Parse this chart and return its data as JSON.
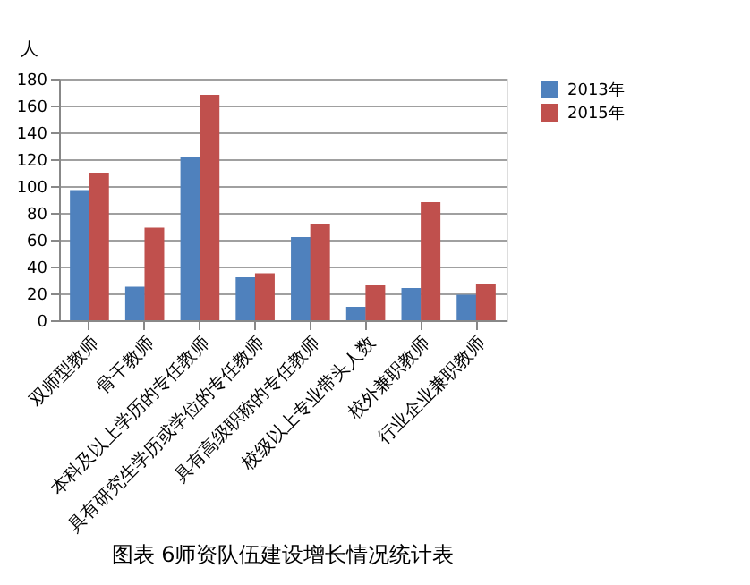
{
  "chart_data": {
    "type": "bar",
    "title": "图表 6师资队伍建设增长情况统计表",
    "ylabel": "人",
    "categories": [
      "双师型教师",
      "骨干教师",
      "本科及以上学历的专任教师",
      "具有研究生学历或学位的专任教师",
      "具有高级职称的专任教师",
      "校级以上专业带头人数",
      "校外兼职教师",
      "行业企业兼职教师"
    ],
    "series": [
      {
        "name": "2013年",
        "color": "#4f81bd",
        "values": [
          97,
          25,
          122,
          32,
          62,
          10,
          24,
          19
        ]
      },
      {
        "name": "2015年",
        "color": "#c0504d",
        "values": [
          110,
          69,
          168,
          35,
          72,
          26,
          88,
          27
        ]
      }
    ],
    "ylim": [
      0,
      180
    ],
    "yticks": [
      0,
      20,
      40,
      60,
      80,
      100,
      120,
      140,
      160,
      180
    ],
    "grid": "y",
    "legend": "right"
  }
}
